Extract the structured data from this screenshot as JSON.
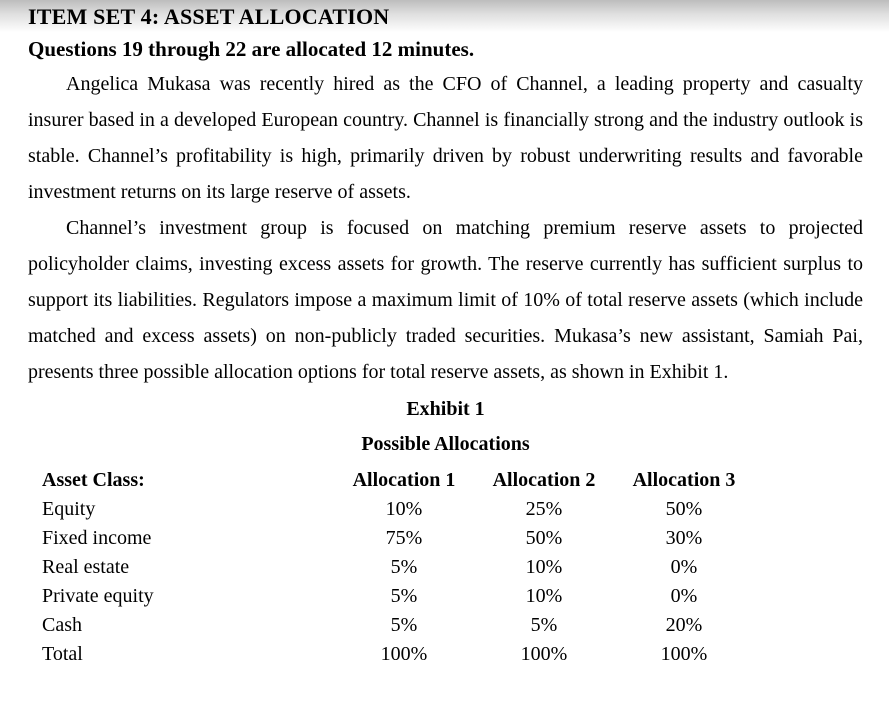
{
  "page": {
    "title": "ITEM SET 4: ASSET ALLOCATION",
    "subtitle": "Questions 19 through 22 are allocated 12 minutes.",
    "paragraphs": {
      "p1": "Angelica Mukasa was recently hired as the CFO of Channel, a leading property and casualty insurer based in a developed European country. Channel is financially strong and the industry outlook is stable. Channel’s profitability is high, primarily driven by robust underwriting results and favorable investment returns on its large reserve of assets.",
      "p2": "Channel’s investment group is focused on matching premium reserve assets to projected policyholder claims, investing excess assets for growth. The reserve currently has sufficient surplus to support its liabilities. Regulators impose a maximum limit of 10% of total reserve assets (which include matched and excess assets) on non-publicly traded securities. Mukasa’s new assistant, Samiah Pai, presents three possible allocation options for total reserve assets, as shown in Exhibit 1."
    }
  },
  "exhibit": {
    "title": "Exhibit 1",
    "subtitle": "Possible Allocations",
    "table": {
      "headers": {
        "asset_class": "Asset Class:",
        "a1": "Allocation 1",
        "a2": "Allocation 2",
        "a3": "Allocation 3"
      },
      "rows": [
        {
          "label": "Equity",
          "a1": "10%",
          "a2": "25%",
          "a3": "50%"
        },
        {
          "label": "Fixed income",
          "a1": "75%",
          "a2": "50%",
          "a3": "30%"
        },
        {
          "label": "Real estate",
          "a1": "5%",
          "a2": "10%",
          "a3": "0%"
        },
        {
          "label": "Private equity",
          "a1": "5%",
          "a2": "10%",
          "a3": "0%"
        },
        {
          "label": "Cash",
          "a1": "5%",
          "a2": "5%",
          "a3": "20%"
        },
        {
          "label": "Total",
          "a1": "100%",
          "a2": "100%",
          "a3": "100%"
        }
      ]
    }
  }
}
